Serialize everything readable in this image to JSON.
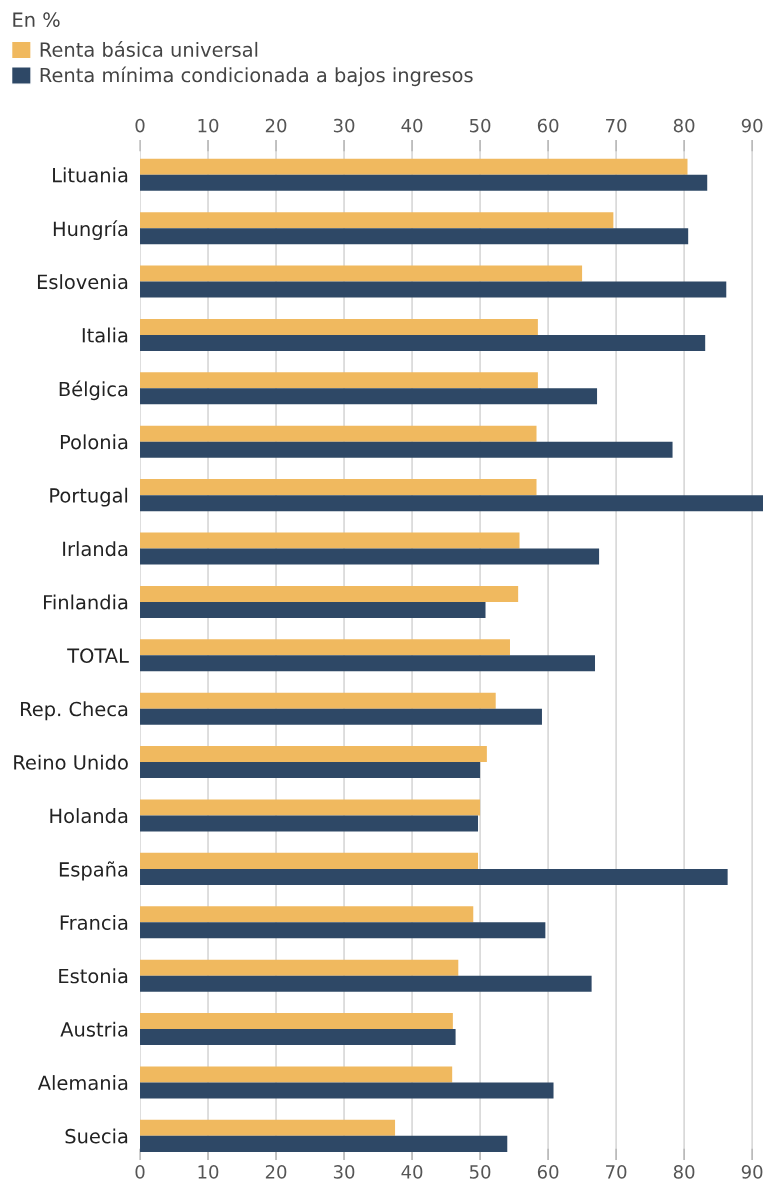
{
  "chart_data": {
    "type": "bar",
    "orientation": "horizontal",
    "annotations": [
      "En %"
    ],
    "categories": [
      "Lituania",
      "Hungría",
      "Eslovenia",
      "Italia",
      "Bélgica",
      "Polonia",
      "Portugal",
      "Irlanda",
      "Finlandia",
      "TOTAL",
      "Rep. Checa",
      "Reino Unido",
      "Holanda",
      "España",
      "Francia",
      "Estonia",
      "Austria",
      "Alemania",
      "Suecia"
    ],
    "series": [
      {
        "name": "Renta básica universal",
        "color": "#f0b95f",
        "values": [
          80.5,
          69.6,
          65.0,
          58.5,
          58.5,
          58.3,
          58.3,
          55.8,
          55.6,
          54.4,
          52.3,
          51.0,
          50.0,
          49.7,
          49.0,
          46.8,
          46.0,
          45.9,
          37.5
        ]
      },
      {
        "name": "Renta mínima condicionada a bajos ingresos",
        "color": "#2e4866",
        "values": [
          83.4,
          80.6,
          86.2,
          83.1,
          67.2,
          78.3,
          91.6,
          67.5,
          50.8,
          66.9,
          59.1,
          50.0,
          49.7,
          86.4,
          59.6,
          66.4,
          46.4,
          60.8,
          54.0
        ]
      }
    ],
    "xlim": [
      0,
      91.6
    ],
    "xticks": [
      0,
      10,
      20,
      30,
      40,
      50,
      60,
      70,
      80,
      90
    ],
    "x2lim": [
      0,
      91.6
    ],
    "x2ticks": [
      0,
      10,
      20,
      30,
      40,
      50,
      60,
      70,
      80,
      90
    ],
    "grid": "x",
    "legend": "top left"
  }
}
